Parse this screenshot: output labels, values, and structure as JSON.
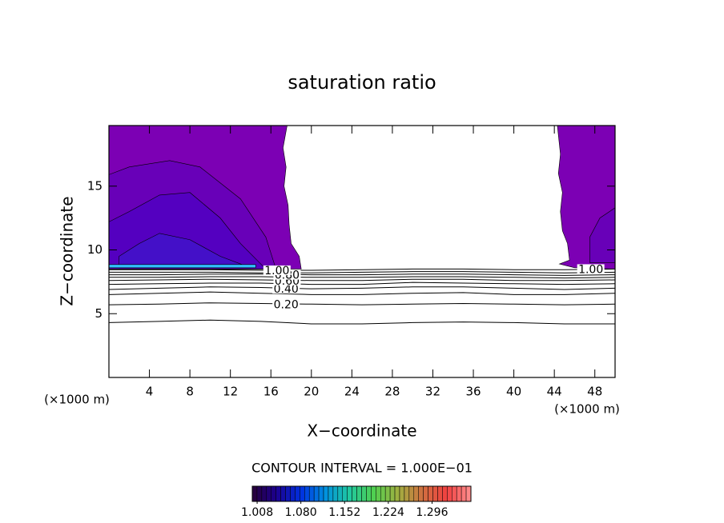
{
  "chart_data": {
    "type": "contour",
    "title": "saturation ratio",
    "x_label": "X−coordinate",
    "y_label": "Z−coordinate",
    "x_unit": "(×1000 m)",
    "annotation": "CONTOUR INTERVAL = 1.000E−01",
    "xlim": [
      0,
      50
    ],
    "ylim": [
      0,
      19.75
    ],
    "xticks": [
      4,
      8,
      12,
      16,
      20,
      24,
      28,
      32,
      36,
      40,
      44,
      48
    ],
    "yticks": [
      5,
      10,
      15
    ],
    "regions": [
      {
        "color": "#7c00b4",
        "x": [
          0,
          19,
          18.8,
          18,
          17.8,
          17.7,
          17.3,
          17.5,
          17.2,
          17.6,
          0
        ],
        "z": [
          8.5,
          8.5,
          9.5,
          10.5,
          12,
          13.5,
          15,
          16.5,
          18,
          19.75,
          19.75
        ]
      },
      {
        "color": "#7c00b4",
        "x": [
          46,
          44.5,
          45.5,
          45.3,
          44.8,
          44.6,
          44.8,
          44.4,
          44.6,
          44.3,
          50,
          50
        ],
        "z": [
          8.6,
          8.9,
          9.2,
          10.5,
          11.5,
          13,
          14.5,
          16,
          17.5,
          19.75,
          19.75,
          8.5
        ]
      },
      {
        "color": "#6800b8",
        "x": [
          0,
          16.5,
          15.5,
          13,
          9,
          6,
          2,
          0
        ],
        "z": [
          8.5,
          8.5,
          11,
          14,
          16.5,
          17,
          16.5,
          15.9
        ]
      },
      {
        "color": "#6800b8",
        "x": [
          47.5,
          50,
          50,
          48.5,
          47.5
        ],
        "z": [
          9,
          9,
          13.3,
          12.5,
          11
        ]
      },
      {
        "color": "#5400c0",
        "x": [
          0,
          15.5,
          13,
          11,
          8,
          5,
          2,
          0
        ],
        "z": [
          8.5,
          8.5,
          10.5,
          12.5,
          14.5,
          14.3,
          13,
          12.2
        ]
      },
      {
        "color": "#4410c8",
        "x": [
          1,
          14,
          11,
          8,
          5,
          3,
          1
        ],
        "z": [
          8.6,
          8.6,
          9.5,
          10.8,
          11.3,
          10.5,
          9.5
        ]
      },
      {
        "color": "#30c0ff",
        "x": [
          0,
          14.5,
          14.5,
          0
        ],
        "z": [
          8.6,
          8.6,
          8.85,
          8.85
        ]
      }
    ],
    "contour_x": [
      0,
      5,
      10,
      15,
      20,
      25,
      30,
      35,
      40,
      45,
      50
    ],
    "contours": [
      {
        "level": 0.1,
        "z": [
          4.3,
          4.4,
          4.5,
          4.4,
          4.2,
          4.2,
          4.3,
          4.35,
          4.3,
          4.2,
          4.2
        ]
      },
      {
        "level": 0.2,
        "label": "0.20",
        "z": [
          5.7,
          5.75,
          5.85,
          5.8,
          5.75,
          5.7,
          5.75,
          5.8,
          5.75,
          5.7,
          5.75
        ]
      },
      {
        "level": 0.3,
        "z": [
          6.5,
          6.6,
          6.7,
          6.6,
          6.5,
          6.5,
          6.6,
          6.65,
          6.5,
          6.5,
          6.6
        ]
      },
      {
        "level": 0.4,
        "label": "0.40",
        "z": [
          6.9,
          7.0,
          7.1,
          7.05,
          6.95,
          7.0,
          7.1,
          7.1,
          7.0,
          6.9,
          7.0
        ]
      },
      {
        "level": 0.5,
        "z": [
          7.3,
          7.35,
          7.4,
          7.4,
          7.3,
          7.3,
          7.45,
          7.4,
          7.35,
          7.3,
          7.35
        ]
      },
      {
        "level": 0.6,
        "label": "0.60",
        "z": [
          7.6,
          7.65,
          7.7,
          7.65,
          7.6,
          7.6,
          7.7,
          7.7,
          7.6,
          7.6,
          7.65
        ]
      },
      {
        "level": 0.7,
        "z": [
          7.85,
          7.85,
          7.9,
          7.9,
          7.85,
          7.85,
          7.9,
          7.9,
          7.85,
          7.8,
          7.85
        ]
      },
      {
        "level": 0.8,
        "label": "0.80",
        "z": [
          8.05,
          8.05,
          8.1,
          8.1,
          8.05,
          8.05,
          8.1,
          8.1,
          8.05,
          8.0,
          8.05
        ]
      },
      {
        "level": 0.9,
        "z": [
          8.25,
          8.25,
          8.25,
          8.2,
          8.2,
          8.25,
          8.3,
          8.3,
          8.25,
          8.2,
          8.25
        ]
      },
      {
        "level": 1.0,
        "label": "1.00",
        "z": [
          8.45,
          8.45,
          8.45,
          8.4,
          8.4,
          8.45,
          8.5,
          8.5,
          8.45,
          8.45,
          8.5
        ]
      }
    ],
    "colorbar": {
      "lim": [
        1.0,
        1.36
      ],
      "colors": [
        "#280038",
        "#1c0090",
        "#0030e0",
        "#0090e0",
        "#20c8a0",
        "#50d050",
        "#a0b040",
        "#d07040",
        "#f04040",
        "#ff9090"
      ],
      "ticks": [
        1.008,
        {
          "value": 1.08,
          "label": "1.080"
        },
        1.152,
        1.224,
        1.296
      ]
    }
  }
}
